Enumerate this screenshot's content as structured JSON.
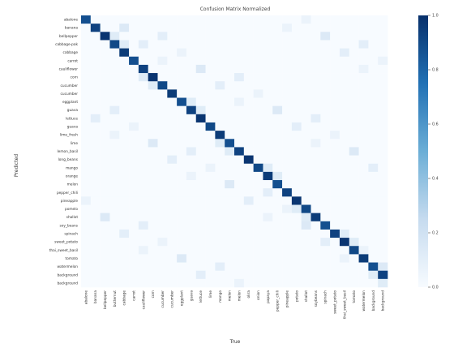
{
  "chart_data": {
    "type": "heatmap",
    "title": "Confusion Matrix Normalized",
    "xlabel": "True",
    "ylabel": "Predicted",
    "x_tick_labels": [
      "abalone",
      "banana",
      "bellpepper",
      "butternut",
      "cabbage",
      "carrot",
      "cauliflower",
      "corn",
      "cucumber",
      "cucumber",
      "eggplant",
      "guava",
      "lettuce",
      "lime",
      "mango",
      "melon",
      "melon",
      "okra",
      "onion",
      "papaya",
      "pepper_chili",
      "pineapple",
      "potato",
      "shallot",
      "soybeans",
      "spinach",
      "sweet_potato",
      "thai_sweet_basil",
      "tomato",
      "watermelon",
      "background",
      "background"
    ],
    "y_tick_labels": [
      "abalone",
      "banana",
      "bellpepper",
      "cabbage-pak",
      "cabbage",
      "carrot",
      "cauliflower",
      "corn",
      "cucumber",
      "cucumber",
      "eggplant",
      "guava",
      "lettuce",
      "guava",
      "lime_fresh",
      "lime",
      "lemon_basil",
      "long_beans",
      "mango",
      "orange",
      "melon",
      "pepper_chili",
      "pineapple",
      "pomelo",
      "shallot",
      "soy_beans",
      "spinach",
      "sweet_potato",
      "thai_sweet_basil",
      "tomato",
      "watermelon",
      "background",
      "background"
    ],
    "colorbar_ticks": [
      0.0,
      0.2,
      0.4,
      0.6,
      0.8,
      1.0
    ],
    "value_range": [
      0,
      1
    ],
    "colormap": [
      "#f7fbff",
      "#08306b"
    ],
    "grid": false
  }
}
